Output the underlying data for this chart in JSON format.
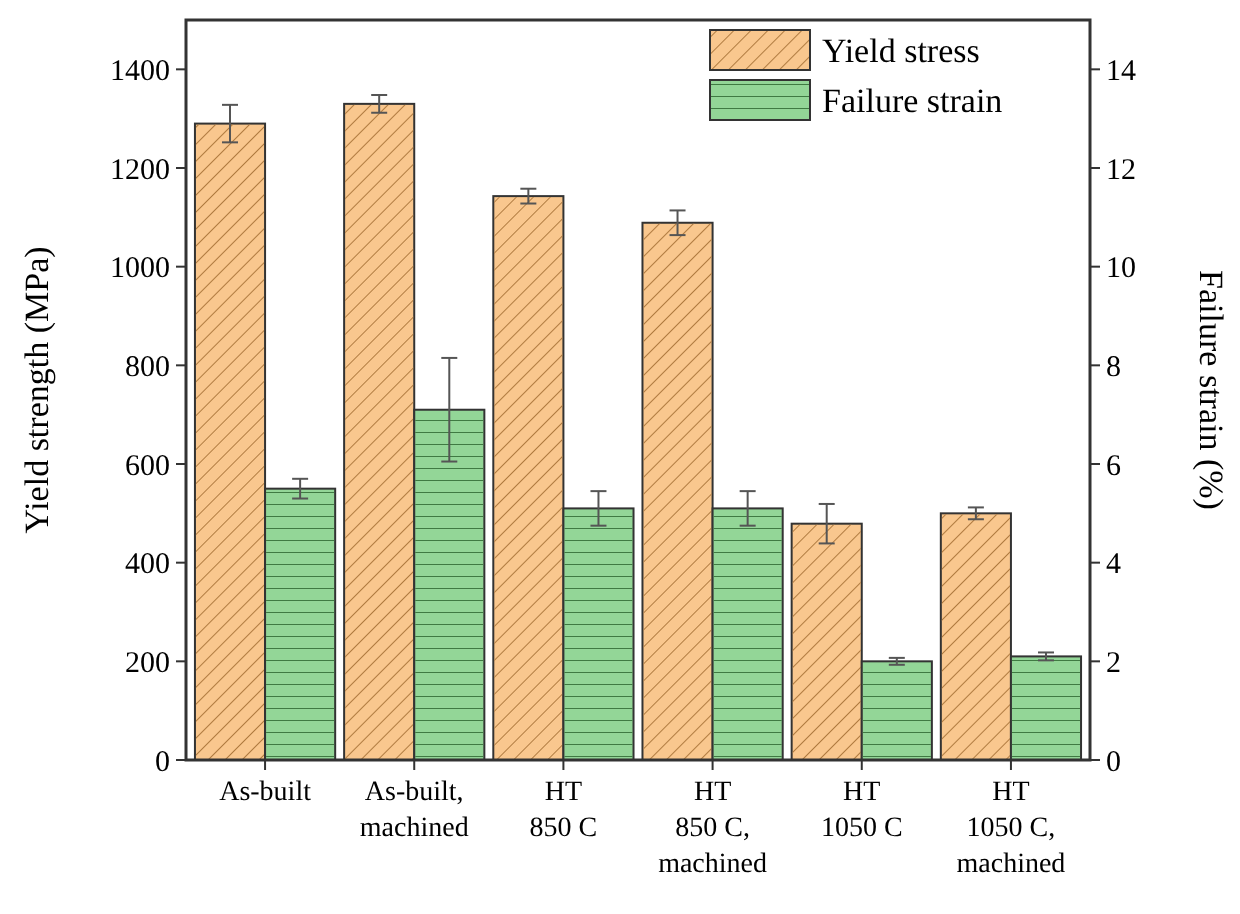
{
  "chart_data": {
    "type": "bar",
    "ylabel": "Yield strength (MPa)",
    "y2label": "Failure strain (%)",
    "categories": [
      "As-built",
      "As-built,\nmachined",
      "HT\n850 C",
      "HT\n850 C,\nmachined",
      "HT\n1050 C",
      "HT\n1050 C,\nmachined"
    ],
    "series": [
      {
        "name": "Yield stress",
        "color": "#f9c78e",
        "values": [
          1290,
          1330,
          1143,
          1089,
          479,
          500
        ],
        "errors": [
          38,
          18,
          15,
          25,
          40,
          12
        ]
      },
      {
        "name": "Failure strain",
        "color": "#93d697",
        "axis": "y2",
        "values": [
          5.5,
          7.1,
          5.1,
          5.1,
          2.0,
          2.1
        ],
        "errors": [
          0.2,
          1.05,
          0.35,
          0.35,
          0.07,
          0.08
        ]
      }
    ],
    "ylim": [
      0,
      1500
    ],
    "yticks": [
      0,
      200,
      400,
      600,
      800,
      1000,
      1200,
      1400
    ],
    "y2lim": [
      0,
      15
    ],
    "y2ticks": [
      0,
      2,
      4,
      6,
      8,
      10,
      12,
      14
    ],
    "legend": "top right",
    "grid": false
  }
}
